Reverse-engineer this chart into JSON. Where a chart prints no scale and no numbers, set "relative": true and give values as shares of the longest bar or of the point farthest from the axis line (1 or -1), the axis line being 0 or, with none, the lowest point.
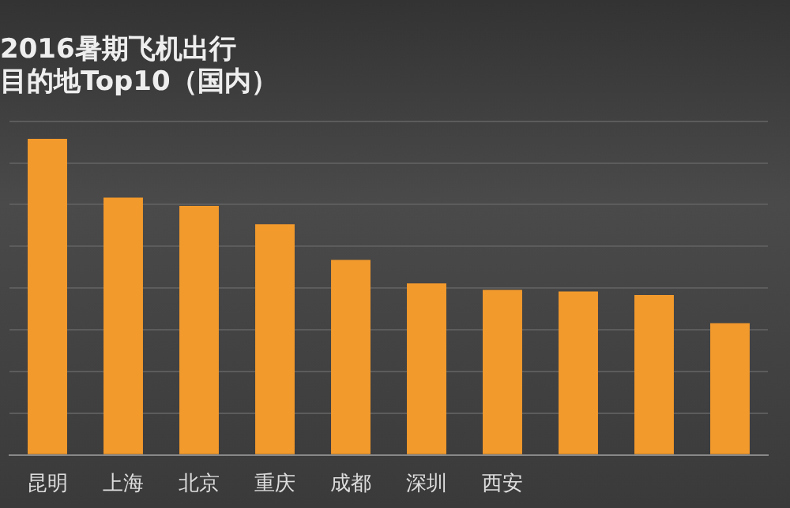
{
  "chart_data": {
    "type": "bar",
    "title": [
      "2016暑期飞机出行",
      "目的地Top10（国内）"
    ],
    "categories": [
      "昆明",
      "上海",
      "北京",
      "重庆",
      "成都",
      "深圳",
      "西安",
      null,
      null,
      null
    ],
    "values": [
      1,
      0.814,
      0.788,
      0.73,
      0.617,
      0.543,
      0.522,
      0.517,
      0.506,
      0.417
    ],
    "color": "#f39a2c",
    "relative": true,
    "grid": "y"
  }
}
